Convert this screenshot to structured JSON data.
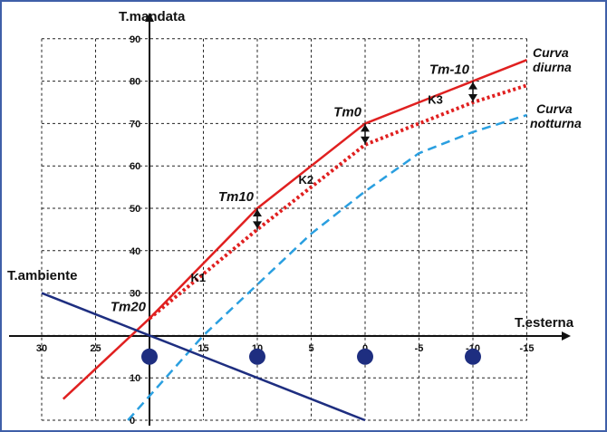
{
  "chart_data": {
    "type": "line",
    "title": "",
    "ylabel": "T.mandata",
    "xlabel": "T.esterna",
    "xlim": [
      30,
      -15
    ],
    "ylim": [
      0,
      90
    ],
    "x_ticks": [
      30,
      25,
      20,
      15,
      10,
      5,
      0,
      -5,
      -10,
      -15
    ],
    "x_tick_labels": [
      "30",
      "25",
      "",
      "15",
      "10",
      "5",
      "0",
      "-5",
      "-10",
      "-15"
    ],
    "y_ticks": [
      0,
      10,
      20,
      30,
      40,
      50,
      60,
      70,
      80,
      90
    ],
    "y_tick_labels": [
      "0",
      "10",
      "",
      "30",
      "40",
      "50",
      "60",
      "70",
      "80",
      "90"
    ],
    "grid": true,
    "series": [
      {
        "name": "Curva diurna",
        "color": "#e02020",
        "style": "solid",
        "x": [
          28,
          20,
          10,
          0,
          -10,
          -15
        ],
        "y": [
          5,
          24,
          50,
          70,
          80,
          85
        ]
      },
      {
        "name": "",
        "color": "#e02020",
        "style": "dotted",
        "x": [
          20,
          10,
          0,
          -10,
          -15
        ],
        "y": [
          24,
          45,
          65,
          75,
          79
        ]
      },
      {
        "name": "Curva notturna",
        "color": "#2a9fe0",
        "style": "dashed",
        "x": [
          22,
          15,
          10,
          5,
          0,
          -5,
          -10,
          -15
        ],
        "y": [
          0,
          20,
          32,
          44,
          54,
          63,
          68,
          72
        ]
      },
      {
        "name": "T.ambiente",
        "color": "#1e2e80",
        "style": "solid",
        "x": [
          30,
          20,
          10,
          0
        ],
        "y": [
          30,
          20,
          10,
          0
        ]
      }
    ],
    "markers": {
      "color": "#1e2e80",
      "x": [
        20,
        10,
        0,
        -10
      ],
      "y": [
        15,
        15,
        15,
        15
      ]
    },
    "point_labels": [
      {
        "text": "Tm20",
        "x": 20,
        "y": 24
      },
      {
        "text": "Tm10",
        "x": 10,
        "y": 50
      },
      {
        "text": "Tm0",
        "x": 0,
        "y": 70
      },
      {
        "text": "Tm-10",
        "x": -10,
        "y": 80
      }
    ],
    "k_labels": [
      {
        "text": "K1",
        "x": 15,
        "y": 34
      },
      {
        "text": "K2",
        "x": 5,
        "y": 57
      },
      {
        "text": "K3",
        "x": -7,
        "y": 76
      }
    ],
    "shift_arrows": [
      {
        "x": 10,
        "y_top": 50,
        "y_bottom": 45
      },
      {
        "x": 0,
        "y_top": 70,
        "y_bottom": 65
      },
      {
        "x": -10,
        "y_top": 80,
        "y_bottom": 75
      }
    ],
    "curve_labels": [
      {
        "line1": "Curva",
        "line2": "diurna"
      },
      {
        "line1": "Curva",
        "line2": "notturna"
      }
    ]
  }
}
